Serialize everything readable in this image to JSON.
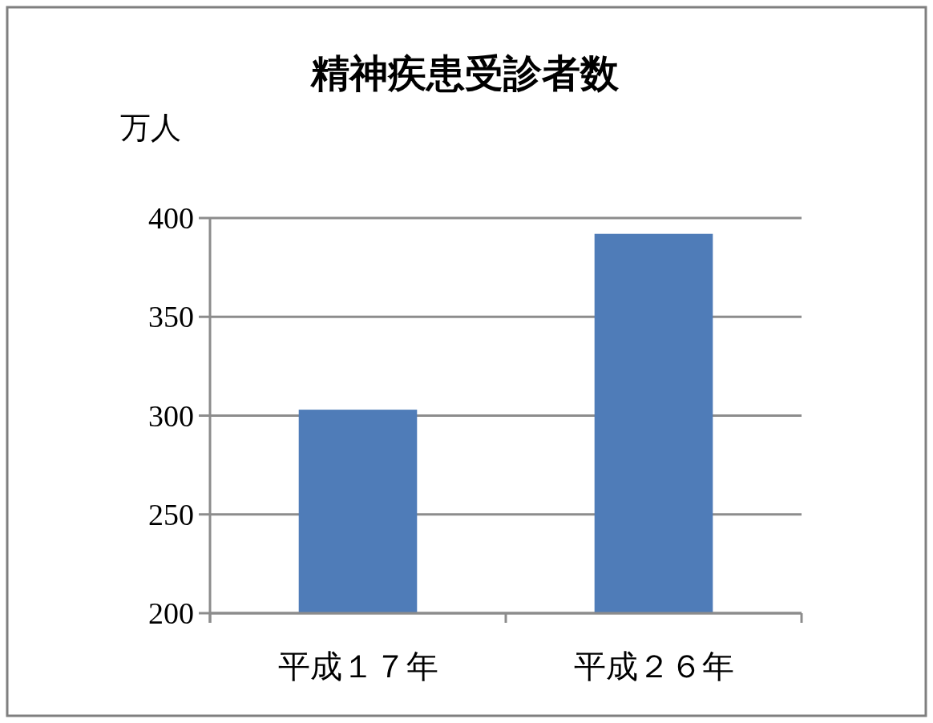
{
  "chart_data": {
    "type": "bar",
    "title": "精神疾患受診者数",
    "ylabel": "万人",
    "categories": [
      "平成１７年",
      "平成２６年"
    ],
    "values": [
      303,
      392
    ],
    "color": "#4f7cb8",
    "ylim": [
      200,
      400
    ],
    "yticks": [
      200,
      250,
      300,
      350,
      400
    ],
    "grid": "y"
  }
}
